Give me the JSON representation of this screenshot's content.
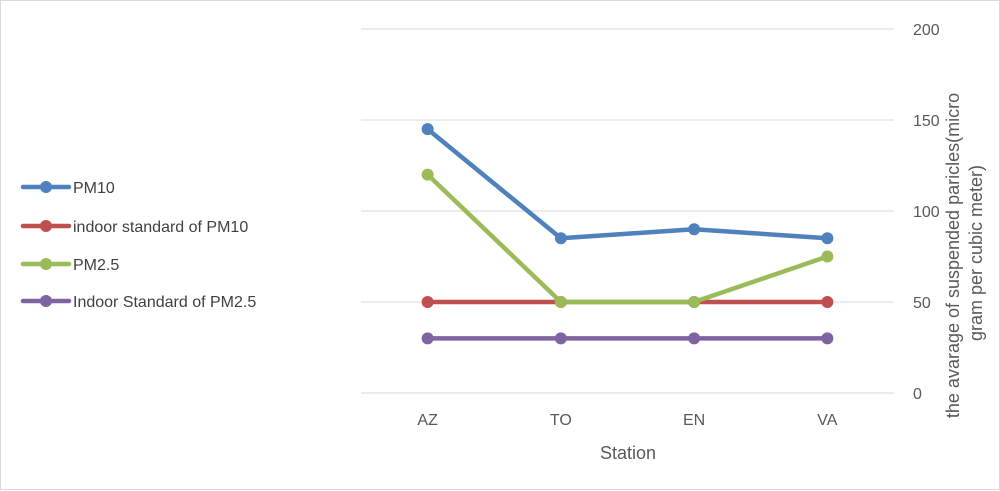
{
  "chart_data": {
    "type": "line",
    "categories": [
      "AZ",
      "TO",
      "EN",
      "VA"
    ],
    "series": [
      {
        "name": "PM10",
        "values": [
          145,
          85,
          90,
          85
        ],
        "color": "#4f81bd"
      },
      {
        "name": "indoor standard of PM10",
        "values": [
          50,
          50,
          50,
          50
        ],
        "color": "#c0504d"
      },
      {
        "name": "PM2.5",
        "values": [
          120,
          50,
          50,
          75
        ],
        "color": "#9bbb59"
      },
      {
        "name": "Indoor Standard of PM2.5",
        "values": [
          30,
          30,
          30,
          30
        ],
        "color": "#8064a2"
      }
    ],
    "xlabel": "Station",
    "ylabel_lines": [
      "the avarage of suspended paricles(micro",
      "gram per cubic meter)"
    ],
    "ylim": [
      0,
      200
    ],
    "yticks": [
      0,
      50,
      100,
      150,
      200
    ],
    "y_axis_side": "right",
    "grid": true,
    "legend_position": "left"
  }
}
